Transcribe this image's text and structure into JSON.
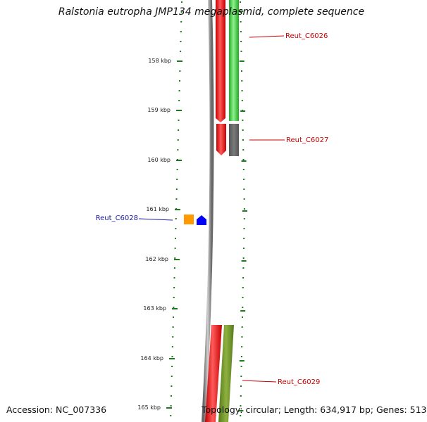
{
  "title": "Ralstonia eutropha JMP134 megaplasmid, complete sequence",
  "footer": {
    "accession": "Accession: NC_007336",
    "summary": "Topology: circular; Length: 634,917 bp; Genes: 513"
  },
  "ruler": {
    "labels": [
      "158 kbp",
      "159 kbp",
      "160 kbp",
      "161 kbp",
      "162 kbp",
      "163 kbp",
      "164 kbp",
      "165 kbp"
    ],
    "color": "#1f7a1f"
  },
  "genes": [
    {
      "name": "Reut_C6026",
      "label_color": "#cc0000"
    },
    {
      "name": "Reut_C6027",
      "label_color": "#cc0000"
    },
    {
      "name": "Reut_C6028",
      "label_color": "#1a1aa0"
    },
    {
      "name": "Reut_C6029",
      "label_color": "#cc0000"
    }
  ],
  "colors": {
    "backbone": "#8a8a8a",
    "red_feature": "#ee0000",
    "green_feature": "#33cc33",
    "gray_feature": "#666666",
    "olive_feature": "#6b8e23",
    "orange_feature": "#ff9900",
    "blue_feature": "#0000ff"
  }
}
